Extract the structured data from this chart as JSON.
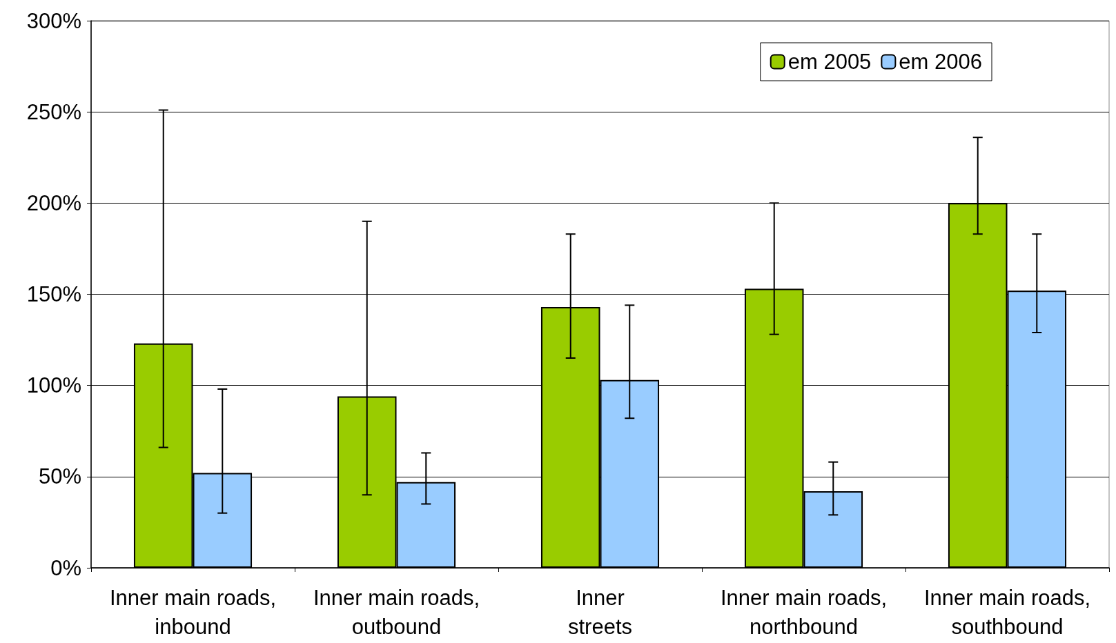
{
  "chart_data": {
    "type": "bar",
    "categories": [
      "Inner main roads,\ninbound",
      "Inner main roads,\noutbound",
      "Inner\nstreets",
      "Inner main roads,\nnorthbound",
      "Inner main roads,\nsouthbound"
    ],
    "series": [
      {
        "name": "em 2005",
        "color": "#99cc00",
        "values": [
          123,
          94,
          143,
          153,
          200
        ],
        "errors": [
          [
            66,
            251
          ],
          [
            40,
            190
          ],
          [
            115,
            183
          ],
          [
            128,
            200
          ],
          [
            183,
            236
          ]
        ]
      },
      {
        "name": "em 2006",
        "color": "#99ccff",
        "values": [
          52,
          47,
          103,
          42,
          152
        ],
        "errors": [
          [
            30,
            98
          ],
          [
            35,
            63
          ],
          [
            82,
            144
          ],
          [
            29,
            58
          ],
          [
            129,
            183
          ]
        ]
      }
    ],
    "ylim": [
      0,
      300
    ],
    "yticks": [
      {
        "value": 0,
        "label": "0%"
      },
      {
        "value": 50,
        "label": "50%"
      },
      {
        "value": 100,
        "label": "100%"
      },
      {
        "value": 150,
        "label": "150%"
      },
      {
        "value": 200,
        "label": "200%"
      },
      {
        "value": 250,
        "label": "250%"
      },
      {
        "value": 300,
        "label": "300%"
      }
    ],
    "grid": "y",
    "legend": "top right"
  }
}
